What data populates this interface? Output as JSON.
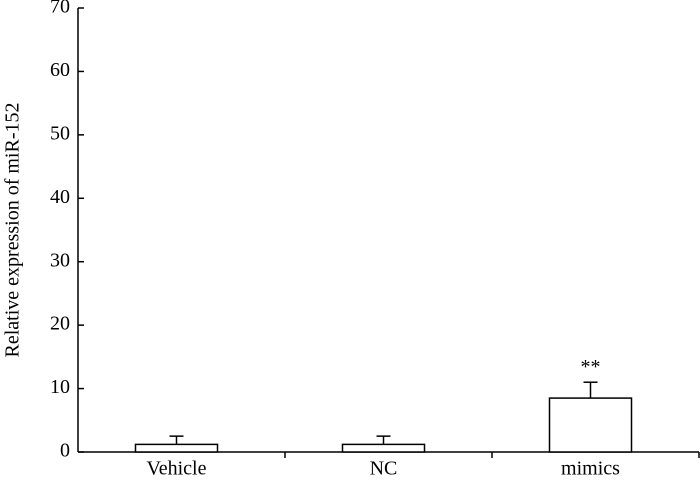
{
  "chart_data": {
    "type": "bar",
    "y_label": "Relative expression of miR-152",
    "categories": [
      "Vehicle",
      "NC",
      "mimics"
    ],
    "values": [
      1.2,
      1.2,
      8.5
    ],
    "errors": [
      1.3,
      1.3,
      2.5
    ],
    "annotation": "**",
    "color": "#ffffff",
    "ylim": [
      0,
      70
    ],
    "yticks": [
      0,
      10,
      20,
      30,
      40,
      50,
      60,
      70
    ]
  }
}
